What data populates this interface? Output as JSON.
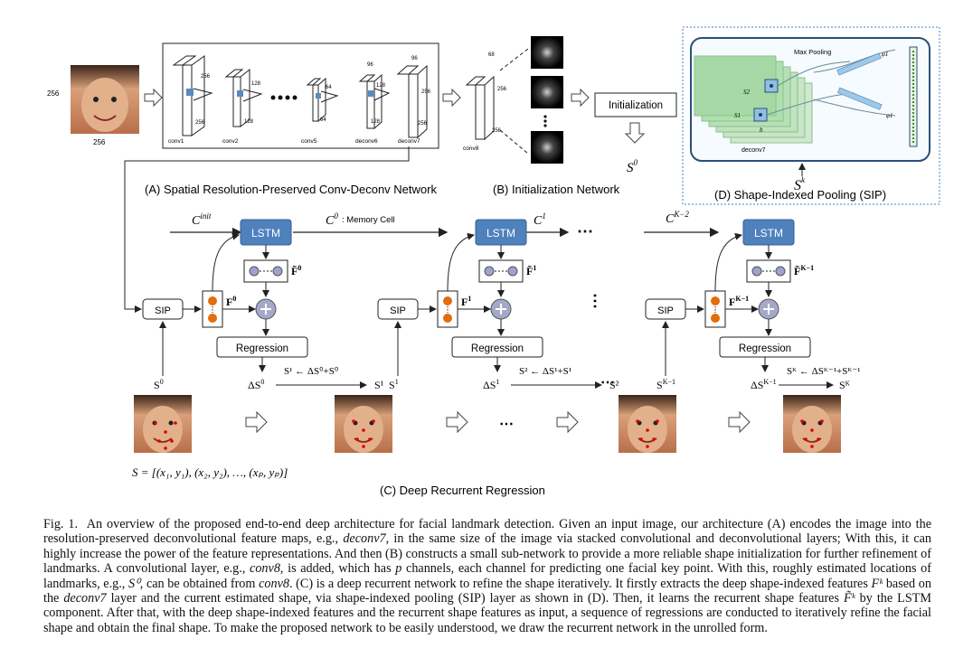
{
  "panelA": {
    "label": "(A) Spatial Resolution-Preserved Conv-Deconv Network",
    "input_size_left": "256",
    "input_size_bottom": "256",
    "layers": [
      {
        "name": "conv1",
        "dims": [
          "256",
          "256"
        ]
      },
      {
        "name": "conv2",
        "dims": [
          "128",
          "128"
        ]
      },
      {
        "name": "conv5",
        "dims": [
          "64",
          "64"
        ]
      },
      {
        "name": "deconv6",
        "dims": [
          "96",
          "128",
          "128"
        ]
      },
      {
        "name": "deconv7",
        "dims": [
          "96",
          "256",
          "256"
        ]
      }
    ]
  },
  "panelB": {
    "label": "(B) Initialization Network",
    "layer": "conv8",
    "dims": [
      "68",
      "256",
      "256"
    ],
    "init_box": "Initialization",
    "output": "S",
    "output_sup": "0"
  },
  "panelD": {
    "label": "(D) Shape-Indexed Pooling (SIP)",
    "max_pooling": "Max Pooling",
    "layer": "deconv7",
    "input": "S",
    "input_sup": "k",
    "s1": "S1",
    "s2": "S2",
    "b": "b",
    "phi1": "φ1",
    "phi2": "φ1"
  },
  "panelC": {
    "label": "(C) Deep Recurrent Regression",
    "lstm": "LSTM",
    "sip": "SIP",
    "regression": "Regression",
    "c_init": "C",
    "c_init_sup": "init",
    "c0": "C",
    "c0_sup": "0",
    "memory_cell": ": Memory Cell",
    "c1": "C",
    "c1_sup": "1",
    "ck2": "C",
    "ck2_sup": "K−2",
    "ellipsis": "⋯",
    "stages": [
      {
        "ftilde": "F̃",
        "ftilde_sup": "0",
        "f": "F",
        "f_sup": "0",
        "s_in": "S",
        "s_in_sup": "0",
        "ds": "ΔS",
        "ds_sup": "0",
        "update": "S¹ ← ΔS⁰+S⁰",
        "s_out": "S¹"
      },
      {
        "ftilde": "F̃",
        "ftilde_sup": "1",
        "f": "F",
        "f_sup": "1",
        "s_in": "S",
        "s_in_sup": "1",
        "ds": "ΔS",
        "ds_sup": "1",
        "update": "S² ← ΔS¹+S¹",
        "s_out": "S²"
      },
      {
        "ftilde": "F̃",
        "ftilde_sup": "K−1",
        "f": "F",
        "f_sup": "K−1",
        "s_in": "S",
        "s_in_sup": "K−1",
        "ds": "ΔS",
        "ds_sup": "K−1",
        "update": "Sᴷ ← ΔSᴷ⁻¹+Sᴷ⁻¹",
        "s_out": "Sᴷ"
      }
    ],
    "shape_formula": "S = [(x₁, y₁), (x₂, y₂), …, (xₚ, yₚ)]"
  },
  "caption": {
    "fig": "Fig. 1.",
    "text_1": "An overview of the proposed end-to-end deep architecture for facial landmark detection. Given an input image, our architecture (A) encodes the image into the resolution-preserved deconvolutional feature maps, e.g., ",
    "em_1": "deconv7",
    "text_2": ", in the same size of the image via stacked convolutional and deconvolutional layers; With this, it can highly increase the power of the feature representations. And then (B) constructs a small sub-network to provide a more reliable shape initialization for further refinement of landmarks. A convolutional layer, e.g., ",
    "em_2": "conv8",
    "text_3": ", is added, which has ",
    "em_3": "p",
    "text_4": " channels, each channel for predicting one facial key point. With this, roughly estimated locations of landmarks, e.g., ",
    "em_4": "S⁰",
    "text_5": ", can be obtained from ",
    "em_5": "conv8",
    "text_6": ". (C) is a deep recurrent network to refine the shape iteratively. It firstly extracts the deep shape-indexed features ",
    "em_6": "Fᵏ",
    "text_7": " based on the ",
    "em_7": "deconv7",
    "text_8": " layer and the current estimated shape, via shape-indexed pooling (SIP) layer as shown in (D). Then, it learns the recurrent shape features ",
    "em_8": "F̃ᵏ",
    "text_9": " by the LSTM component. After that, with the deep shape-indexed features and the recurrent shape features as input, a sequence of regressions are conducted to iteratively refine the facial shape and obtain the final shape. To make the proposed network to be easily understood, we draw the recurrent network in the unrolled form."
  },
  "colors": {
    "lstm": "#4f81bd",
    "node_fill": "#9da3cf",
    "orange": "#e46c0a",
    "green_panel": "#c6e8c6",
    "plus": "#a5a9c9"
  }
}
